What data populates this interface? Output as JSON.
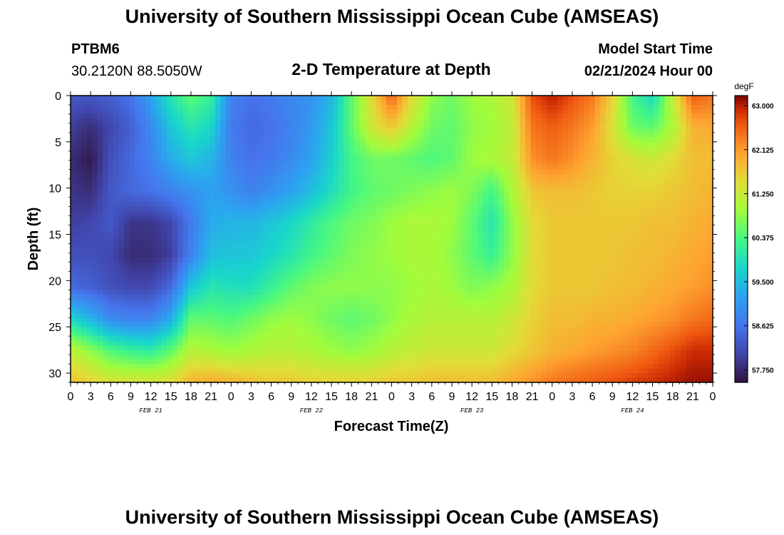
{
  "header": {
    "title": "University of Southern Mississippi Ocean Cube (AMSEAS)",
    "station": "PTBM6",
    "coords": "30.2120N  88.5050W",
    "subtitle": "2-D Temperature at Depth",
    "model_start_label": "Model Start Time",
    "model_start_value": "02/21/2024 Hour 00"
  },
  "footer": {
    "title": "University of Southern Mississippi Ocean Cube (AMSEAS)"
  },
  "chart_data": {
    "type": "heatmap",
    "title": "2-D Temperature at Depth",
    "xlabel": "Forecast Time(Z)",
    "ylabel": "Depth (ft)",
    "colorbar_label": "degF",
    "x_hours": [
      0,
      3,
      6,
      9,
      12,
      15,
      18,
      21,
      24,
      27,
      30,
      33,
      36,
      39,
      42,
      45,
      48,
      51,
      54,
      57,
      60,
      63,
      66,
      69,
      72,
      75,
      78,
      81,
      84,
      87,
      90,
      93,
      96
    ],
    "xlim": [
      0,
      96
    ],
    "x_tick_labels": [
      "0",
      "3",
      "6",
      "9",
      "12",
      "15",
      "18",
      "21",
      "0",
      "3",
      "6",
      "9",
      "12",
      "15",
      "18",
      "21",
      "0",
      "3",
      "6",
      "9",
      "12",
      "15",
      "18",
      "21",
      "0",
      "3",
      "6",
      "9",
      "12",
      "15",
      "18",
      "21",
      "0"
    ],
    "day_labels": [
      {
        "label": "FEB 21",
        "hour": 12
      },
      {
        "label": "FEB 22",
        "hour": 36
      },
      {
        "label": "FEB 23",
        "hour": 60
      },
      {
        "label": "FEB 24",
        "hour": 84
      }
    ],
    "y_depths_ft": [
      0,
      5,
      10,
      15,
      20,
      25,
      30
    ],
    "ylim": [
      0,
      31
    ],
    "y_reversed": true,
    "colorbar_ticks": [
      63.0,
      62.125,
      61.25,
      60.375,
      59.5,
      58.625,
      57.75
    ],
    "colorbar_tick_labels": [
      "63.000",
      "62.125",
      "61.250",
      "60.375",
      "59.500",
      "58.625",
      "57.750"
    ],
    "colorbar_range": [
      57.5,
      63.2
    ],
    "temperature_degF": [
      [
        58.3,
        58.3,
        58.4,
        58.6,
        59.2,
        60.0,
        60.5,
        60.2,
        58.8,
        58.6,
        58.7,
        58.9,
        59.0,
        59.4,
        60.5,
        61.5,
        62.6,
        61.5,
        60.8,
        60.6,
        60.9,
        61.0,
        61.3,
        62.7,
        63.0,
        62.7,
        62.4,
        61.6,
        60.3,
        59.8,
        61.2,
        62.6,
        62.4
      ],
      [
        58.0,
        57.8,
        58.1,
        58.4,
        58.9,
        59.6,
        60.0,
        59.8,
        58.7,
        58.5,
        58.6,
        58.8,
        59.1,
        59.6,
        60.5,
        61.3,
        61.7,
        61.1,
        60.6,
        60.5,
        60.8,
        60.9,
        61.2,
        62.4,
        62.6,
        62.4,
        62.1,
        61.4,
        60.6,
        60.5,
        61.0,
        61.9,
        62.0
      ],
      [
        57.8,
        57.6,
        58.2,
        58.5,
        58.8,
        59.3,
        59.6,
        59.4,
        58.8,
        58.6,
        58.7,
        58.9,
        59.2,
        59.7,
        60.3,
        60.6,
        60.6,
        60.5,
        60.4,
        60.5,
        60.9,
        61.0,
        61.2,
        62.2,
        62.4,
        62.2,
        61.9,
        61.6,
        61.4,
        61.3,
        61.5,
        61.8,
        61.8
      ],
      [
        57.9,
        57.8,
        58.3,
        58.5,
        58.6,
        58.8,
        59.0,
        59.2,
        59.0,
        58.8,
        59.0,
        59.2,
        59.5,
        59.9,
        60.3,
        60.5,
        60.6,
        60.7,
        60.8,
        60.9,
        60.7,
        60.3,
        61.0,
        61.7,
        61.8,
        61.8,
        61.7,
        61.6,
        61.6,
        61.6,
        61.7,
        61.8,
        61.9
      ],
      [
        58.0,
        58.1,
        58.3,
        57.9,
        57.9,
        58.1,
        58.7,
        59.3,
        59.4,
        59.4,
        59.6,
        59.8,
        60.1,
        60.4,
        60.6,
        60.7,
        60.9,
        61.0,
        61.0,
        60.9,
        60.5,
        60.0,
        60.8,
        61.5,
        61.7,
        61.7,
        61.7,
        61.7,
        61.7,
        61.8,
        61.8,
        61.9,
        62.0
      ],
      [
        58.2,
        58.2,
        58.1,
        57.8,
        57.8,
        58.0,
        58.8,
        59.5,
        59.6,
        59.6,
        59.8,
        60.0,
        60.3,
        60.5,
        60.7,
        60.8,
        60.9,
        61.0,
        61.0,
        60.8,
        60.5,
        60.2,
        60.8,
        61.5,
        61.7,
        61.7,
        61.7,
        61.7,
        61.8,
        61.8,
        61.9,
        62.0,
        62.1
      ],
      [
        58.5,
        58.4,
        58.2,
        58.1,
        58.1,
        58.5,
        59.6,
        60.0,
        59.9,
        59.9,
        60.2,
        60.5,
        60.7,
        60.8,
        60.8,
        60.8,
        60.8,
        60.9,
        61.0,
        60.9,
        60.7,
        60.8,
        61.0,
        61.5,
        61.7,
        61.7,
        61.7,
        61.8,
        61.8,
        61.9,
        62.0,
        62.1,
        62.2
      ],
      [
        59.8,
        59.4,
        58.9,
        58.8,
        58.8,
        59.3,
        60.5,
        60.5,
        60.4,
        60.6,
        60.8,
        60.9,
        60.8,
        60.6,
        60.5,
        60.6,
        60.8,
        61.0,
        61.1,
        61.1,
        61.1,
        61.1,
        61.3,
        61.6,
        61.8,
        61.8,
        61.9,
        61.9,
        62.0,
        62.1,
        62.2,
        62.4,
        62.5
      ],
      [
        61.2,
        60.8,
        60.4,
        60.2,
        60.1,
        60.5,
        61.1,
        61.0,
        60.9,
        61.0,
        61.1,
        61.1,
        61.0,
        60.9,
        60.8,
        60.9,
        61.1,
        61.2,
        61.3,
        61.3,
        61.3,
        61.3,
        61.5,
        61.7,
        61.9,
        62.0,
        62.1,
        62.2,
        62.3,
        62.5,
        62.7,
        62.9,
        62.9
      ],
      [
        61.8,
        61.6,
        61.4,
        61.4,
        61.4,
        61.5,
        61.9,
        62.0,
        61.9,
        61.8,
        61.7,
        61.7,
        61.6,
        61.6,
        61.6,
        61.6,
        61.7,
        61.7,
        61.8,
        61.8,
        61.8,
        61.8,
        62.0,
        62.2,
        62.4,
        62.5,
        62.6,
        62.7,
        62.8,
        62.9,
        63.0,
        63.1,
        63.1
      ]
    ]
  },
  "icons": {
    "colormap": "turbo"
  }
}
